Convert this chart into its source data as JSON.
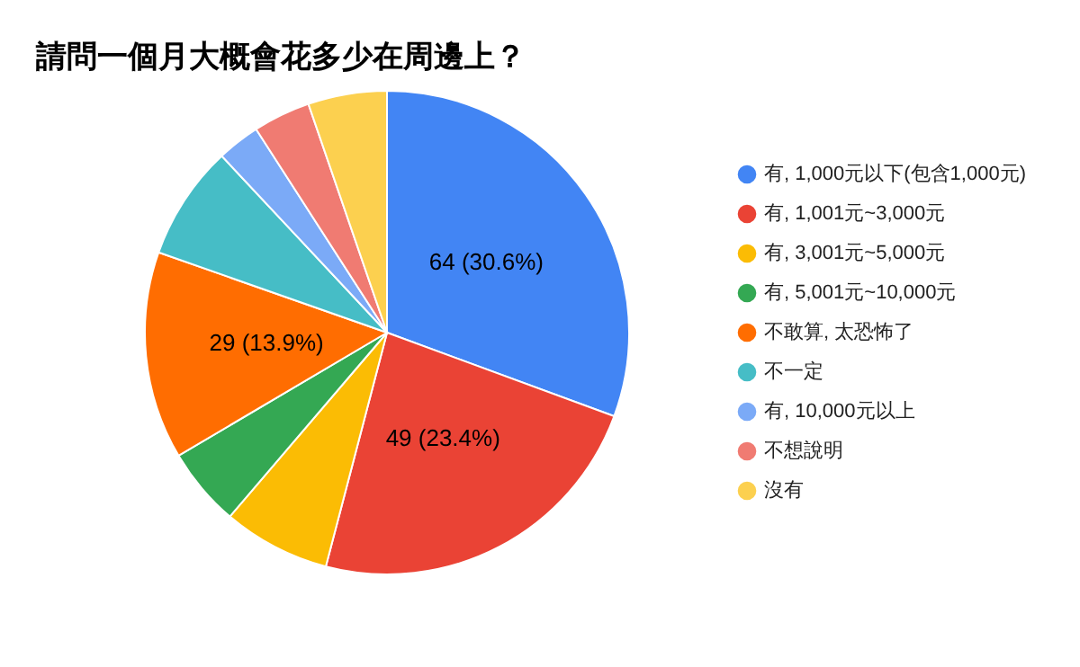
{
  "chart_data": {
    "type": "pie",
    "title": "請問一個月大概會花多少在周邊上？",
    "categories": [
      "有, 1,000元以下(包含1,000元)",
      "有, 1,001元~3,000元",
      "有, 3,001元~5,000元",
      "有, 5,001元~10,000元",
      "不敢算, 太恐怖了",
      "不一定",
      "有, 10,000元以上",
      "不想說明",
      "沒有"
    ],
    "values": [
      64,
      49,
      15,
      11,
      29,
      16,
      6,
      8,
      11
    ],
    "colors": [
      "#4285f4",
      "#ea4335",
      "#fbbc04",
      "#34a853",
      "#ff6d01",
      "#46bdc6",
      "#7baaf7",
      "#f07b72",
      "#fcd04f"
    ],
    "value_labels": [
      "64 (30.6%)",
      "49 (23.4%)",
      null,
      null,
      "29 (13.9%)",
      null,
      null,
      null,
      null
    ],
    "legend": "right"
  }
}
